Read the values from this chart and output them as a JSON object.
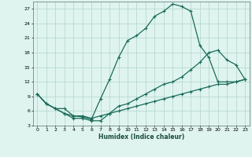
{
  "background_color": "#dff4ef",
  "grid_color": "#b8d8d0",
  "line_color": "#1a6b5a",
  "xlabel": "Humidex (Indice chaleur)",
  "xlim": [
    -0.5,
    23.5
  ],
  "ylim": [
    3,
    28.5
  ],
  "yticks": [
    3,
    6,
    9,
    12,
    15,
    18,
    21,
    24,
    27
  ],
  "xticks": [
    0,
    1,
    2,
    3,
    4,
    5,
    6,
    7,
    8,
    9,
    10,
    11,
    12,
    13,
    14,
    15,
    16,
    17,
    18,
    19,
    20,
    21,
    22,
    23
  ],
  "curve1_x": [
    0,
    1,
    2,
    3,
    4,
    5,
    6,
    7,
    8,
    9,
    10,
    11,
    12,
    13,
    14,
    15,
    16,
    17,
    18,
    19,
    20,
    21,
    22,
    23
  ],
  "curve1_y": [
    9.5,
    7.5,
    6.5,
    6.5,
    5.0,
    4.8,
    4.3,
    8.5,
    12.5,
    17.0,
    20.5,
    21.5,
    23.0,
    25.5,
    26.5,
    28.0,
    27.5,
    26.5,
    19.5,
    17.0,
    12.0,
    12.0,
    12.0,
    12.5
  ],
  "curve2_x": [
    0,
    1,
    2,
    3,
    4,
    5,
    6,
    7,
    8,
    9,
    10,
    11,
    12,
    13,
    14,
    15,
    16,
    17,
    18,
    19,
    20,
    21,
    22,
    23
  ],
  "curve2_y": [
    9.5,
    7.5,
    6.5,
    5.5,
    4.5,
    4.5,
    4.0,
    4.0,
    5.5,
    7.0,
    7.5,
    8.5,
    9.5,
    10.5,
    11.5,
    12.0,
    13.0,
    14.5,
    16.0,
    18.0,
    18.5,
    16.5,
    15.5,
    12.5
  ],
  "curve3_x": [
    0,
    1,
    2,
    3,
    4,
    5,
    6,
    7,
    8,
    9,
    10,
    11,
    12,
    13,
    14,
    15,
    16,
    17,
    18,
    19,
    20,
    21,
    22,
    23
  ],
  "curve3_y": [
    9.5,
    7.5,
    6.5,
    5.5,
    5.0,
    5.0,
    4.5,
    5.0,
    5.5,
    6.0,
    6.5,
    7.0,
    7.5,
    8.0,
    8.5,
    9.0,
    9.5,
    10.0,
    10.5,
    11.0,
    11.5,
    11.5,
    12.0,
    12.5
  ]
}
